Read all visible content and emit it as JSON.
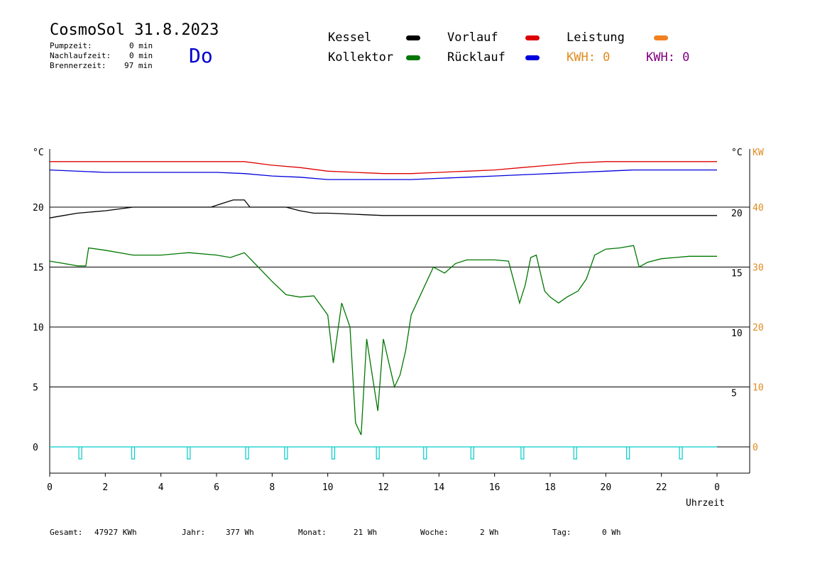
{
  "header": {
    "title": "CosmoSol 31.8.2023",
    "day": "Do",
    "stats": [
      {
        "label": "Pumpzeit:",
        "value": "0 min"
      },
      {
        "label": "Nachlaufzeit:",
        "value": "0 min"
      },
      {
        "label": "Brennerzeit:",
        "value": "97 min"
      }
    ]
  },
  "legend": {
    "kessel": "Kessel",
    "kollektor": "Kollektor",
    "vorlauf": "Vorlauf",
    "ruecklauf": "Rücklauf",
    "leistung": "Leistung",
    "kwh1": "KWH: 0",
    "kwh2": "KWH: 0"
  },
  "colors": {
    "kessel": "#000000",
    "kollektor": "#007700",
    "vorlauf": "#dd0000",
    "ruecklauf": "#0000dd",
    "leistung": "#f08020",
    "pump": "#00cccc",
    "kwh2": "#800080"
  },
  "axes": {
    "left_unit": "°C",
    "right_unit": "°C",
    "right_unit2": "KW",
    "xlabel": "Uhrzeit"
  },
  "footer": [
    {
      "label": "Gesamt:",
      "value": "47927 KWh"
    },
    {
      "label": "Jahr:",
      "value": "377 Wh"
    },
    {
      "label": "Monat:",
      "value": "21 Wh"
    },
    {
      "label": "Woche:",
      "value": "2 Wh"
    },
    {
      "label": "Tag:",
      "value": "0 Wh"
    }
  ],
  "chart_data": {
    "type": "line",
    "xlim": [
      0,
      24
    ],
    "ylim": [
      -2,
      25
    ],
    "x_ticks": [
      "0",
      "2",
      "4",
      "6",
      "8",
      "10",
      "12",
      "14",
      "16",
      "18",
      "20",
      "22",
      "0"
    ],
    "y_ticks_left": [
      "0",
      "5",
      "10",
      "15",
      "20"
    ],
    "y_ticks_right": [
      "5",
      "10",
      "15",
      "20"
    ],
    "y_ticks_kw": [
      "0",
      "10",
      "20",
      "30",
      "40"
    ],
    "series": [
      {
        "name": "Vorlauf",
        "x": [
          0,
          2,
          4,
          6,
          7,
          8,
          9,
          10,
          11,
          12,
          13,
          14,
          15,
          16,
          17,
          18,
          19,
          20,
          21,
          22,
          23,
          24
        ],
        "values": [
          23.8,
          23.8,
          23.8,
          23.8,
          23.8,
          23.5,
          23.3,
          23.0,
          22.9,
          22.8,
          22.8,
          22.9,
          23.0,
          23.1,
          23.3,
          23.5,
          23.7,
          23.8,
          23.8,
          23.8,
          23.8,
          23.8
        ]
      },
      {
        "name": "Rücklauf",
        "x": [
          0,
          2,
          4,
          6,
          7,
          8,
          9,
          10,
          11,
          12,
          13,
          14,
          15,
          16,
          17,
          18,
          19,
          20,
          21,
          22,
          23,
          24
        ],
        "values": [
          23.1,
          22.9,
          22.9,
          22.9,
          22.8,
          22.6,
          22.5,
          22.3,
          22.3,
          22.3,
          22.3,
          22.4,
          22.5,
          22.6,
          22.7,
          22.8,
          22.9,
          23.0,
          23.1,
          23.1,
          23.1,
          23.1
        ]
      },
      {
        "name": "Kessel",
        "x": [
          0,
          0.5,
          1,
          2,
          3,
          3.4,
          5.8,
          6.2,
          6.6,
          7.0,
          7.2,
          8.5,
          9.0,
          9.5,
          10.0,
          11.0,
          12.0,
          13,
          16,
          20,
          24
        ],
        "values": [
          19.1,
          19.3,
          19.5,
          19.7,
          20.0,
          20.0,
          20.0,
          20.3,
          20.6,
          20.6,
          20.0,
          20.0,
          19.7,
          19.5,
          19.5,
          19.4,
          19.3,
          19.3,
          19.3,
          19.3,
          19.3
        ]
      },
      {
        "name": "Kollektor",
        "x": [
          0,
          0.5,
          1.0,
          1.3,
          1.4,
          2,
          3,
          4,
          5,
          6,
          6.5,
          7.0,
          7.5,
          8.0,
          8.5,
          9.0,
          9.5,
          10.0,
          10.2,
          10.5,
          10.8,
          11.0,
          11.2,
          11.4,
          11.6,
          11.8,
          12.0,
          12.2,
          12.4,
          12.6,
          12.8,
          13.0,
          13.4,
          13.8,
          14.2,
          14.6,
          15.0,
          15.5,
          16.0,
          16.5,
          16.9,
          17.1,
          17.3,
          17.5,
          17.8,
          18.0,
          18.3,
          18.6,
          19.0,
          19.3,
          19.6,
          20.0,
          20.5,
          21.0,
          21.2,
          21.5,
          22.0,
          22.5,
          23.0,
          24
        ],
        "values": [
          15.5,
          15.3,
          15.1,
          15.1,
          16.6,
          16.4,
          16.0,
          16.0,
          16.2,
          16.0,
          15.8,
          16.2,
          15.0,
          13.8,
          12.7,
          12.5,
          12.6,
          11.0,
          7.0,
          12.0,
          10.0,
          2.0,
          1.0,
          9.0,
          6.0,
          3.0,
          9.0,
          7.0,
          5.0,
          6.0,
          8.0,
          11.0,
          13.0,
          15.0,
          14.5,
          15.3,
          15.6,
          15.6,
          15.6,
          15.5,
          12.0,
          13.5,
          15.8,
          16.0,
          13.0,
          12.5,
          12.0,
          12.5,
          13.0,
          14.0,
          16.0,
          16.5,
          16.6,
          16.8,
          15.0,
          15.4,
          15.7,
          15.8,
          15.9,
          15.9
        ]
      },
      {
        "name": "Pumpe",
        "x": [
          1.1,
          3.0,
          5.0,
          7.1,
          8.5,
          10.2,
          11.8,
          13.5,
          15.2,
          17.0,
          18.9,
          20.8,
          22.7
        ],
        "values": [
          0,
          0,
          0,
          0,
          0,
          0,
          0,
          0,
          0,
          0,
          0,
          0,
          0
        ]
      }
    ],
    "gridlines": [
      0,
      5,
      10,
      15,
      20
    ]
  }
}
